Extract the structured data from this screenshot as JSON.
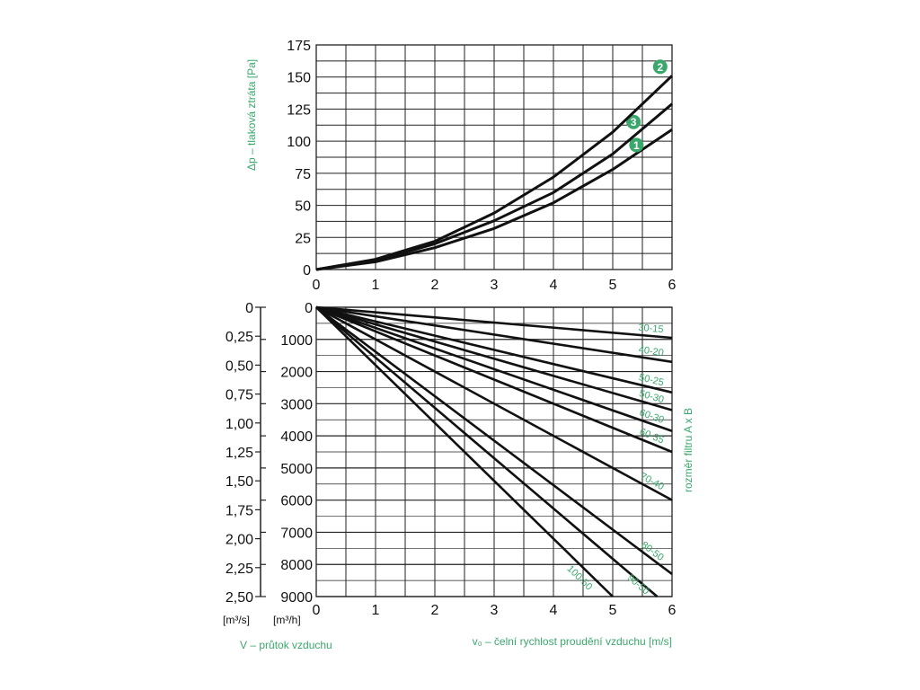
{
  "colors": {
    "accent": "#3aa86b",
    "curve": "#111111",
    "grid": "#222222"
  },
  "chart_data": [
    {
      "type": "line",
      "ylabel": "Δp – tlaková ztráta [Pa]",
      "xlim": [
        0,
        6
      ],
      "ylim": [
        0,
        175
      ],
      "x_ticks": [
        "0",
        "1",
        "2",
        "3",
        "4",
        "5",
        "6"
      ],
      "y_ticks": [
        "0",
        "25",
        "50",
        "75",
        "100",
        "125",
        "150",
        "175"
      ],
      "grid": true,
      "series": [
        {
          "name": "1",
          "x": [
            0,
            1,
            2,
            3,
            4,
            5,
            6
          ],
          "y": [
            0,
            6,
            17,
            32,
            52,
            78,
            109
          ]
        },
        {
          "name": "3",
          "x": [
            0,
            1,
            2,
            3,
            4,
            5,
            6
          ],
          "y": [
            0,
            7,
            20,
            38,
            60,
            90,
            129
          ]
        },
        {
          "name": "2",
          "x": [
            0,
            1,
            2,
            3,
            4,
            5,
            6
          ],
          "y": [
            0,
            8,
            22,
            44,
            72,
            107,
            151
          ]
        }
      ]
    },
    {
      "type": "line",
      "xlabel": "v₀ – čelní rychlost proudění vzduchu [m/s]",
      "ylabel_left": "V – průtok vzduchu",
      "ylabel_right": "rozměr filtru A x B",
      "xlim": [
        0,
        6
      ],
      "ylim": [
        0,
        9000
      ],
      "x_ticks": [
        "0",
        "1",
        "2",
        "3",
        "4",
        "5",
        "6"
      ],
      "y_ticks_m3h": [
        "0",
        "1000",
        "2000",
        "3000",
        "4000",
        "5000",
        "6000",
        "7000",
        "8000",
        "9000"
      ],
      "y_ticks_m3s": [
        "0",
        "0,25",
        "0,50",
        "0,75",
        "1,00",
        "1,25",
        "1,50",
        "1,75",
        "2,00",
        "2,25",
        "2,50"
      ],
      "unit_m3s": "[m³/s]",
      "unit_m3h": "[m³/h]",
      "grid": true,
      "series": [
        {
          "name": "30-15",
          "x": [
            0,
            6
          ],
          "y": [
            0,
            950
          ]
        },
        {
          "name": "40-20",
          "x": [
            0,
            6
          ],
          "y": [
            0,
            1700
          ]
        },
        {
          "name": "50-25",
          "x": [
            0,
            6
          ],
          "y": [
            0,
            2650
          ]
        },
        {
          "name": "50-30",
          "x": [
            0,
            6
          ],
          "y": [
            0,
            3200
          ]
        },
        {
          "name": "60-30",
          "x": [
            0,
            6
          ],
          "y": [
            0,
            3850
          ]
        },
        {
          "name": "60-35",
          "x": [
            0,
            6
          ],
          "y": [
            0,
            4500
          ]
        },
        {
          "name": "70-40",
          "x": [
            0,
            6
          ],
          "y": [
            0,
            6000
          ]
        },
        {
          "name": "80-50",
          "x": [
            0,
            6
          ],
          "y": [
            0,
            8300
          ]
        },
        {
          "name": "90-50",
          "x": [
            0,
            5.75
          ],
          "y": [
            0,
            9000
          ]
        },
        {
          "name": "100-50",
          "x": [
            0,
            5.0
          ],
          "y": [
            0,
            9000
          ]
        }
      ]
    }
  ]
}
